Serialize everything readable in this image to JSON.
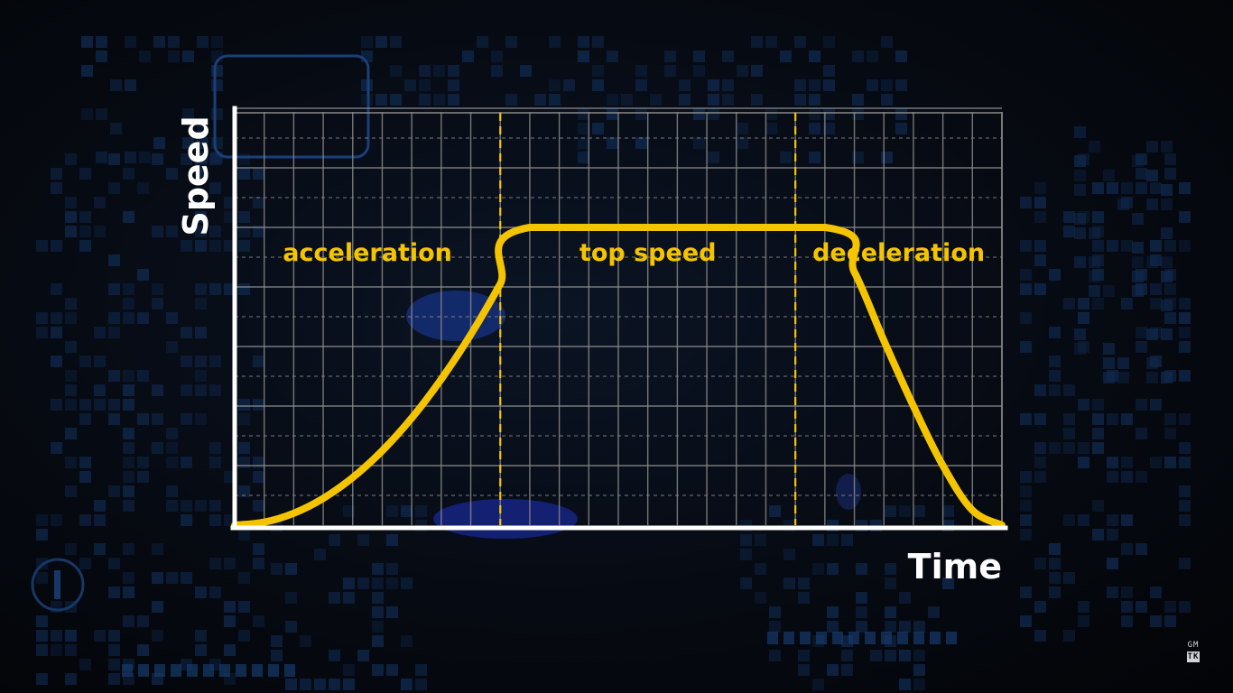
{
  "chart_data": {
    "type": "line",
    "title": "",
    "xlabel": "Time",
    "ylabel": "Speed",
    "xlim": [
      0,
      26
    ],
    "ylim": [
      0,
      14
    ],
    "grid": true,
    "series": [
      {
        "color": "#f5c400",
        "points": [
          [
            0,
            0
          ],
          [
            1,
            0.1
          ],
          [
            2,
            0.4
          ],
          [
            3,
            0.9
          ],
          [
            4,
            1.6
          ],
          [
            5,
            2.5
          ],
          [
            6,
            3.6
          ],
          [
            7,
            4.9
          ],
          [
            8,
            6.4
          ],
          [
            9,
            8.1
          ],
          [
            10,
            10.0
          ],
          [
            20,
            10.0
          ],
          [
            21,
            8.5
          ],
          [
            22,
            6.2
          ],
          [
            23,
            4.0
          ],
          [
            24,
            2.0
          ],
          [
            25,
            0.5
          ],
          [
            26,
            0
          ]
        ]
      }
    ],
    "phases": [
      {
        "label": "acceleration",
        "x_start": 0,
        "x_end": 9
      },
      {
        "label": "top speed",
        "x_start": 9,
        "x_end": 19
      },
      {
        "label": "deceleration",
        "x_start": 19,
        "x_end": 26
      }
    ],
    "dividers_x": [
      9,
      19
    ]
  },
  "colors": {
    "curve": "#f5c400",
    "divider": "#f5c400",
    "axes": "#ffffff",
    "grid": "#8a8a8a",
    "label": "#f5c400"
  },
  "watermark": {
    "top": "GM",
    "bottom": "TK"
  }
}
